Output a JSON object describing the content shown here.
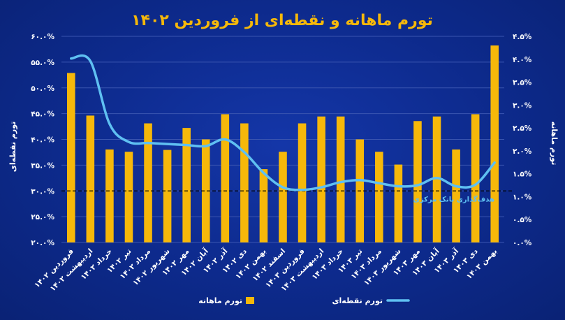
{
  "chart_data": {
    "type": "bar+line",
    "title": "تورم ماهانه و نقطه‌ای از فروردین ۱۴۰۲",
    "left_axis_label": "تورم نقطه‌ای",
    "right_axis_label": "تورم ماهانه",
    "left_ticks": [
      "۶۰.۰%",
      "۵۵.۰%",
      "۵۰.۰%",
      "۴۵.۰%",
      "۴۰.۰%",
      "۳۵.۰%",
      "۳۰.۰%",
      "۲۵.۰%",
      "۲۰.۰%"
    ],
    "right_ticks": [
      "۴.۵%",
      "۴.۰%",
      "۳.۵%",
      "۳.۰%",
      "۲.۵%",
      "۲.۰%",
      "۱.۵%",
      "۱.۰%",
      "۰.۵%",
      "۰.۰%"
    ],
    "left_ylim": [
      20,
      60
    ],
    "right_ylim": [
      0,
      4.5
    ],
    "categories": [
      "فروردین ۱۴۰۲",
      "اردیبهشت ۱۴۰۲",
      "خرداد ۱۴۰۲",
      "تیر ۱۴۰۲",
      "مرداد ۱۴۰۲",
      "شهریور ۱۴۰۲",
      "مهر ۱۴۰۲",
      "آبان ۱۴۰۲",
      "آذر ۱۴۰۲",
      "دی ۱۴۰۲",
      "بهمن ۱۴۰۲",
      "اسفند ۱۴۰۲",
      "فروردین ۱۴۰۳",
      "اردیبهشت ۱۴۰۳",
      "خرداد ۱۴۰۳",
      "تیر ۱۴۰۳",
      "مرداد ۱۴۰۳",
      "شهریور ۱۴۰۳",
      "مهر ۱۴۰۳",
      "آبان ۱۴۰۳",
      "آذر ۱۴۰۳",
      "دی ۱۴۰۳",
      "بهمن ۱۴۰۳"
    ],
    "series": [
      {
        "name": "تورم ماهانه",
        "kind": "bar",
        "axis": "right",
        "color": "#f6b80a",
        "values": [
          3.7,
          2.77,
          2.03,
          1.98,
          2.6,
          2.02,
          2.5,
          2.25,
          2.8,
          2.6,
          1.6,
          1.98,
          2.6,
          2.75,
          2.75,
          2.25,
          1.98,
          1.7,
          2.65,
          2.75,
          2.03,
          2.8,
          4.3
        ]
      },
      {
        "name": "تورم نقطه‌ای",
        "kind": "line",
        "axis": "left",
        "color": "#5fc0f2",
        "values": [
          55.7,
          55.2,
          43.0,
          39.5,
          39.3,
          39.1,
          38.9,
          38.7,
          40.0,
          37.5,
          33.5,
          30.7,
          30.2,
          30.7,
          31.7,
          32.1,
          31.5,
          30.9,
          31.1,
          32.5,
          30.9,
          31.2,
          35.5
        ]
      }
    ],
    "reference_line": {
      "label": "هدف‌گذاری بانک مرکزی",
      "value": 30,
      "axis": "left"
    },
    "legend_position": "bottom"
  }
}
